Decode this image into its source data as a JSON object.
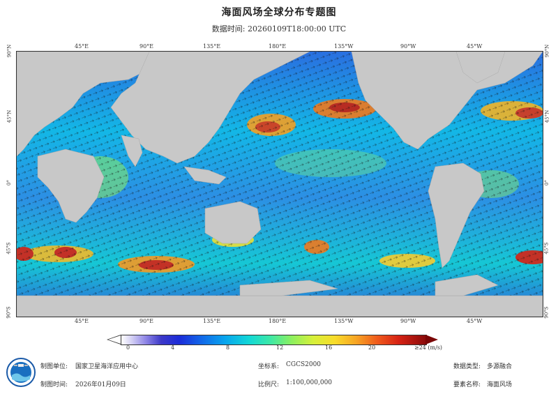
{
  "header": {
    "title": "海面风场全球分布专题图",
    "subtitle": "数据时间: 20260109T18:00:00 UTC"
  },
  "map": {
    "top_lon_ticks": [
      "45°E",
      "90°E",
      "135°E",
      "180°E",
      "135°W",
      "90°W",
      "45°W"
    ],
    "bottom_lon_ticks": [
      "45°E",
      "90°E",
      "135°E",
      "180°E",
      "135°W",
      "90°W",
      "45°W"
    ],
    "lat_ticks": [
      "90°N",
      "45°N",
      "0°",
      "45°S",
      "90°S"
    ],
    "land_color": "#c8c8c8",
    "ocean_low_color": "#1b2bd8",
    "ocean_high_color": "#d62214"
  },
  "legend": {
    "ticks": [
      "0",
      "4",
      "8",
      "12",
      "16",
      "20",
      "≥24 (m/s)"
    ],
    "unit": "m/s"
  },
  "footer": {
    "org_label": "制图单位:",
    "org_value": "国家卫星海洋应用中心",
    "date_label": "制图时间:",
    "date_value": "2026年01月09日",
    "crs_label": "坐标系:",
    "crs_value": "CGCS2000",
    "scale_label": "比例尺:",
    "scale_value": "1:100,000,000",
    "dtype_label": "数据类型:",
    "dtype_value": "多源融合",
    "elem_label": "要素名称:",
    "elem_value": "海面风场"
  }
}
